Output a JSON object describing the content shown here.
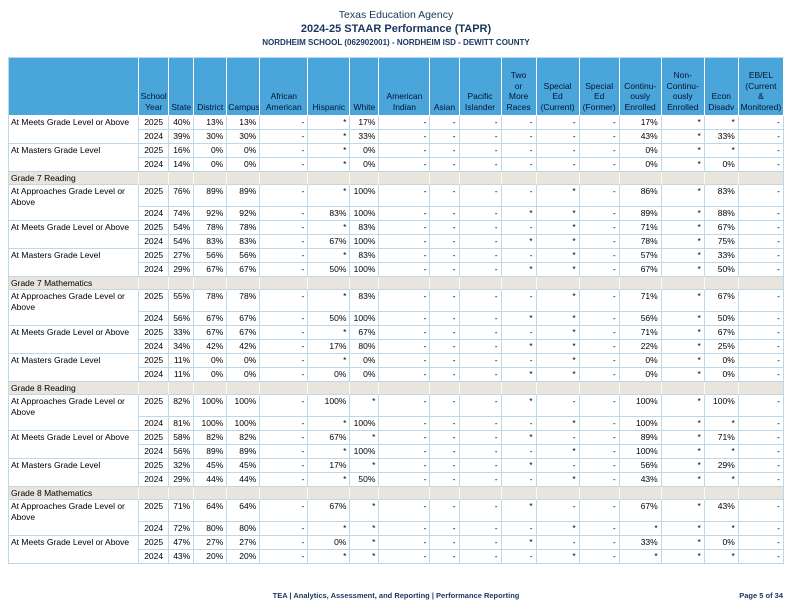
{
  "header": {
    "agency": "Texas Education Agency",
    "report": "2024-25 STAAR Performance (TAPR)",
    "campus": "NORDHEIM SCHOOL (062902001) - NORDHEIM ISD - DEWITT COUNTY"
  },
  "table": {
    "columns": [
      "School\nYear",
      "State",
      "District",
      "Campus",
      "African\nAmerican",
      "Hispanic",
      "White",
      "American\nIndian",
      "Asian",
      "Pacific\nIslander",
      "Two\nor\nMore\nRaces",
      "Special\nEd\n(Current)",
      "Special\nEd\n(Former)",
      "Continu-\nously\nEnrolled",
      "Non-\nContinu-\nously\nEnrolled",
      "Econ\nDisadv",
      "EB/EL\n(Current\n&\nMonitored)"
    ],
    "sections": [
      {
        "heading": null,
        "rows": [
          {
            "label": "At Meets Grade Level or Above",
            "years": [
              {
                "year": "2025",
                "values": [
                  "40%",
                  "13%",
                  "13%",
                  "-",
                  "*",
                  "17%",
                  "-",
                  "-",
                  "-",
                  "-",
                  "-",
                  "-",
                  "17%",
                  "*",
                  "*",
                  "-"
                ]
              },
              {
                "year": "2024",
                "values": [
                  "39%",
                  "30%",
                  "30%",
                  "-",
                  "*",
                  "33%",
                  "-",
                  "-",
                  "-",
                  "-",
                  "-",
                  "-",
                  "43%",
                  "*",
                  "33%",
                  "-"
                ]
              }
            ]
          },
          {
            "label": "At Masters Grade Level",
            "years": [
              {
                "year": "2025",
                "values": [
                  "16%",
                  "0%",
                  "0%",
                  "-",
                  "*",
                  "0%",
                  "-",
                  "-",
                  "-",
                  "-",
                  "-",
                  "-",
                  "0%",
                  "*",
                  "*",
                  "-"
                ]
              },
              {
                "year": "2024",
                "values": [
                  "14%",
                  "0%",
                  "0%",
                  "-",
                  "*",
                  "0%",
                  "-",
                  "-",
                  "-",
                  "-",
                  "-",
                  "-",
                  "0%",
                  "*",
                  "0%",
                  "-"
                ]
              }
            ]
          }
        ]
      },
      {
        "heading": "Grade 7 Reading",
        "rows": [
          {
            "label": "At Approaches Grade Level or\nAbove",
            "years": [
              {
                "year": "2025",
                "values": [
                  "76%",
                  "89%",
                  "89%",
                  "-",
                  "*",
                  "100%",
                  "-",
                  "-",
                  "-",
                  "-",
                  "*",
                  "-",
                  "86%",
                  "*",
                  "83%",
                  "-"
                ]
              },
              {
                "year": "2024",
                "values": [
                  "74%",
                  "92%",
                  "92%",
                  "-",
                  "83%",
                  "100%",
                  "-",
                  "-",
                  "-",
                  "*",
                  "*",
                  "-",
                  "89%",
                  "*",
                  "88%",
                  "-"
                ]
              }
            ]
          },
          {
            "label": "At Meets Grade Level or Above",
            "years": [
              {
                "year": "2025",
                "values": [
                  "54%",
                  "78%",
                  "78%",
                  "-",
                  "*",
                  "83%",
                  "-",
                  "-",
                  "-",
                  "-",
                  "*",
                  "-",
                  "71%",
                  "*",
                  "67%",
                  "-"
                ]
              },
              {
                "year": "2024",
                "values": [
                  "54%",
                  "83%",
                  "83%",
                  "-",
                  "67%",
                  "100%",
                  "-",
                  "-",
                  "-",
                  "*",
                  "*",
                  "-",
                  "78%",
                  "*",
                  "75%",
                  "-"
                ]
              }
            ]
          },
          {
            "label": "At Masters Grade Level",
            "years": [
              {
                "year": "2025",
                "values": [
                  "27%",
                  "56%",
                  "56%",
                  "-",
                  "*",
                  "83%",
                  "-",
                  "-",
                  "-",
                  "-",
                  "*",
                  "-",
                  "57%",
                  "*",
                  "33%",
                  "-"
                ]
              },
              {
                "year": "2024",
                "values": [
                  "29%",
                  "67%",
                  "67%",
                  "-",
                  "50%",
                  "100%",
                  "-",
                  "-",
                  "-",
                  "*",
                  "*",
                  "-",
                  "67%",
                  "*",
                  "50%",
                  "-"
                ]
              }
            ]
          }
        ]
      },
      {
        "heading": "Grade 7 Mathematics",
        "rows": [
          {
            "label": "At Approaches Grade Level or\nAbove",
            "years": [
              {
                "year": "2025",
                "values": [
                  "55%",
                  "78%",
                  "78%",
                  "-",
                  "*",
                  "83%",
                  "-",
                  "-",
                  "-",
                  "-",
                  "*",
                  "-",
                  "71%",
                  "*",
                  "67%",
                  "-"
                ]
              },
              {
                "year": "2024",
                "values": [
                  "56%",
                  "67%",
                  "67%",
                  "-",
                  "50%",
                  "100%",
                  "-",
                  "-",
                  "-",
                  "*",
                  "*",
                  "-",
                  "56%",
                  "*",
                  "50%",
                  "-"
                ]
              }
            ]
          },
          {
            "label": "At Meets Grade Level or Above",
            "years": [
              {
                "year": "2025",
                "values": [
                  "33%",
                  "67%",
                  "67%",
                  "-",
                  "*",
                  "67%",
                  "-",
                  "-",
                  "-",
                  "-",
                  "*",
                  "-",
                  "71%",
                  "*",
                  "67%",
                  "-"
                ]
              },
              {
                "year": "2024",
                "values": [
                  "34%",
                  "42%",
                  "42%",
                  "-",
                  "17%",
                  "80%",
                  "-",
                  "-",
                  "-",
                  "*",
                  "*",
                  "-",
                  "22%",
                  "*",
                  "25%",
                  "-"
                ]
              }
            ]
          },
          {
            "label": "At Masters Grade Level",
            "years": [
              {
                "year": "2025",
                "values": [
                  "11%",
                  "0%",
                  "0%",
                  "-",
                  "*",
                  "0%",
                  "-",
                  "-",
                  "-",
                  "-",
                  "*",
                  "-",
                  "0%",
                  "*",
                  "0%",
                  "-"
                ]
              },
              {
                "year": "2024",
                "values": [
                  "11%",
                  "0%",
                  "0%",
                  "-",
                  "0%",
                  "0%",
                  "-",
                  "-",
                  "-",
                  "*",
                  "*",
                  "-",
                  "0%",
                  "*",
                  "0%",
                  "-"
                ]
              }
            ]
          }
        ]
      },
      {
        "heading": "Grade 8 Reading",
        "rows": [
          {
            "label": "At Approaches Grade Level or\nAbove",
            "years": [
              {
                "year": "2025",
                "values": [
                  "82%",
                  "100%",
                  "100%",
                  "-",
                  "100%",
                  "*",
                  "-",
                  "-",
                  "-",
                  "*",
                  "-",
                  "-",
                  "100%",
                  "*",
                  "100%",
                  "-"
                ]
              },
              {
                "year": "2024",
                "values": [
                  "81%",
                  "100%",
                  "100%",
                  "-",
                  "*",
                  "100%",
                  "-",
                  "-",
                  "-",
                  "-",
                  "*",
                  "-",
                  "100%",
                  "*",
                  "*",
                  "-"
                ]
              }
            ]
          },
          {
            "label": "At Meets Grade Level or Above",
            "years": [
              {
                "year": "2025",
                "values": [
                  "58%",
                  "82%",
                  "82%",
                  "-",
                  "67%",
                  "*",
                  "-",
                  "-",
                  "-",
                  "*",
                  "-",
                  "-",
                  "89%",
                  "*",
                  "71%",
                  "-"
                ]
              },
              {
                "year": "2024",
                "values": [
                  "56%",
                  "89%",
                  "89%",
                  "-",
                  "*",
                  "100%",
                  "-",
                  "-",
                  "-",
                  "-",
                  "*",
                  "-",
                  "100%",
                  "*",
                  "*",
                  "-"
                ]
              }
            ]
          },
          {
            "label": "At Masters Grade Level",
            "years": [
              {
                "year": "2025",
                "values": [
                  "32%",
                  "45%",
                  "45%",
                  "-",
                  "17%",
                  "*",
                  "-",
                  "-",
                  "-",
                  "*",
                  "-",
                  "-",
                  "56%",
                  "*",
                  "29%",
                  "-"
                ]
              },
              {
                "year": "2024",
                "values": [
                  "29%",
                  "44%",
                  "44%",
                  "-",
                  "*",
                  "50%",
                  "-",
                  "-",
                  "-",
                  "-",
                  "*",
                  "-",
                  "43%",
                  "*",
                  "*",
                  "-"
                ]
              }
            ]
          }
        ]
      },
      {
        "heading": "Grade 8 Mathematics",
        "rows": [
          {
            "label": "At Approaches Grade Level or\nAbove",
            "years": [
              {
                "year": "2025",
                "values": [
                  "71%",
                  "64%",
                  "64%",
                  "-",
                  "67%",
                  "*",
                  "-",
                  "-",
                  "-",
                  "*",
                  "-",
                  "-",
                  "67%",
                  "*",
                  "43%",
                  "-"
                ]
              },
              {
                "year": "2024",
                "values": [
                  "72%",
                  "80%",
                  "80%",
                  "-",
                  "*",
                  "*",
                  "-",
                  "-",
                  "-",
                  "-",
                  "*",
                  "-",
                  "*",
                  "*",
                  "*",
                  "-"
                ]
              }
            ]
          },
          {
            "label": "At Meets Grade Level or Above",
            "years": [
              {
                "year": "2025",
                "values": [
                  "47%",
                  "27%",
                  "27%",
                  "-",
                  "0%",
                  "*",
                  "-",
                  "-",
                  "-",
                  "*",
                  "-",
                  "-",
                  "33%",
                  "*",
                  "0%",
                  "-"
                ]
              },
              {
                "year": "2024",
                "values": [
                  "43%",
                  "20%",
                  "20%",
                  "-",
                  "*",
                  "*",
                  "-",
                  "-",
                  "-",
                  "-",
                  "*",
                  "-",
                  "*",
                  "*",
                  "*",
                  "-"
                ]
              }
            ]
          }
        ]
      }
    ]
  },
  "footer": {
    "left": "TEA | Analytics, Assessment, and Reporting | Performance Reporting",
    "right": "Page 5 of 34"
  }
}
